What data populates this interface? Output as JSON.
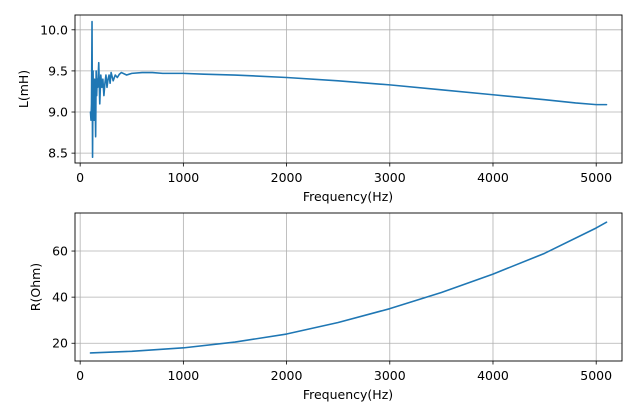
{
  "chart_data": [
    {
      "type": "line",
      "xlabel": "Frequency(Hz)",
      "ylabel": "L(mH)",
      "xlim": [
        -50,
        5250
      ],
      "ylim": [
        8.38,
        10.18
      ],
      "xticks": [
        0,
        1000,
        2000,
        3000,
        4000,
        5000
      ],
      "yticks": [
        8.5,
        9.0,
        9.5,
        10.0
      ],
      "xtick_labels": [
        "0",
        "1000",
        "2000",
        "3000",
        "4000",
        "5000"
      ],
      "ytick_labels": [
        "8.5",
        "9.0",
        "9.5",
        "10.0"
      ],
      "grid": true,
      "line_color": "#1f77b4",
      "series": [
        {
          "name": "L",
          "x": [
            100,
            105,
            110,
            115,
            120,
            125,
            130,
            135,
            140,
            145,
            150,
            155,
            160,
            165,
            170,
            180,
            190,
            200,
            210,
            220,
            230,
            240,
            250,
            260,
            270,
            280,
            290,
            300,
            320,
            340,
            360,
            380,
            400,
            450,
            500,
            600,
            700,
            800,
            900,
            1000,
            1200,
            1500,
            2000,
            2500,
            3000,
            3500,
            4000,
            4500,
            4800,
            5000,
            5100
          ],
          "y": [
            9.0,
            8.9,
            9.1,
            10.1,
            8.45,
            9.5,
            9.0,
            8.9,
            9.4,
            9.2,
            8.7,
            9.5,
            9.2,
            9.4,
            9.3,
            9.6,
            9.1,
            9.45,
            9.3,
            9.4,
            9.2,
            9.35,
            9.45,
            9.3,
            9.4,
            9.45,
            9.35,
            9.48,
            9.38,
            9.45,
            9.42,
            9.46,
            9.48,
            9.45,
            9.47,
            9.48,
            9.48,
            9.47,
            9.47,
            9.47,
            9.46,
            9.45,
            9.42,
            9.38,
            9.33,
            9.27,
            9.21,
            9.15,
            9.11,
            9.09,
            9.09
          ]
        }
      ]
    },
    {
      "type": "line",
      "xlabel": "Frequency(Hz)",
      "ylabel": "R(Ohm)",
      "xlim": [
        -50,
        5250
      ],
      "ylim": [
        12.3,
        76.5
      ],
      "xticks": [
        0,
        1000,
        2000,
        3000,
        4000,
        5000
      ],
      "yticks": [
        20,
        40,
        60
      ],
      "xtick_labels": [
        "0",
        "1000",
        "2000",
        "3000",
        "4000",
        "5000"
      ],
      "ytick_labels": [
        "20",
        "40",
        "60"
      ],
      "grid": true,
      "line_color": "#1f77b4",
      "series": [
        {
          "name": "R",
          "x": [
            100,
            500,
            1000,
            1500,
            2000,
            2500,
            3000,
            3500,
            4000,
            4500,
            5000,
            5100
          ],
          "y": [
            15.8,
            16.5,
            18.0,
            20.5,
            24.0,
            29.0,
            35.0,
            42.0,
            50.0,
            59.0,
            70.0,
            72.5
          ]
        }
      ]
    }
  ]
}
